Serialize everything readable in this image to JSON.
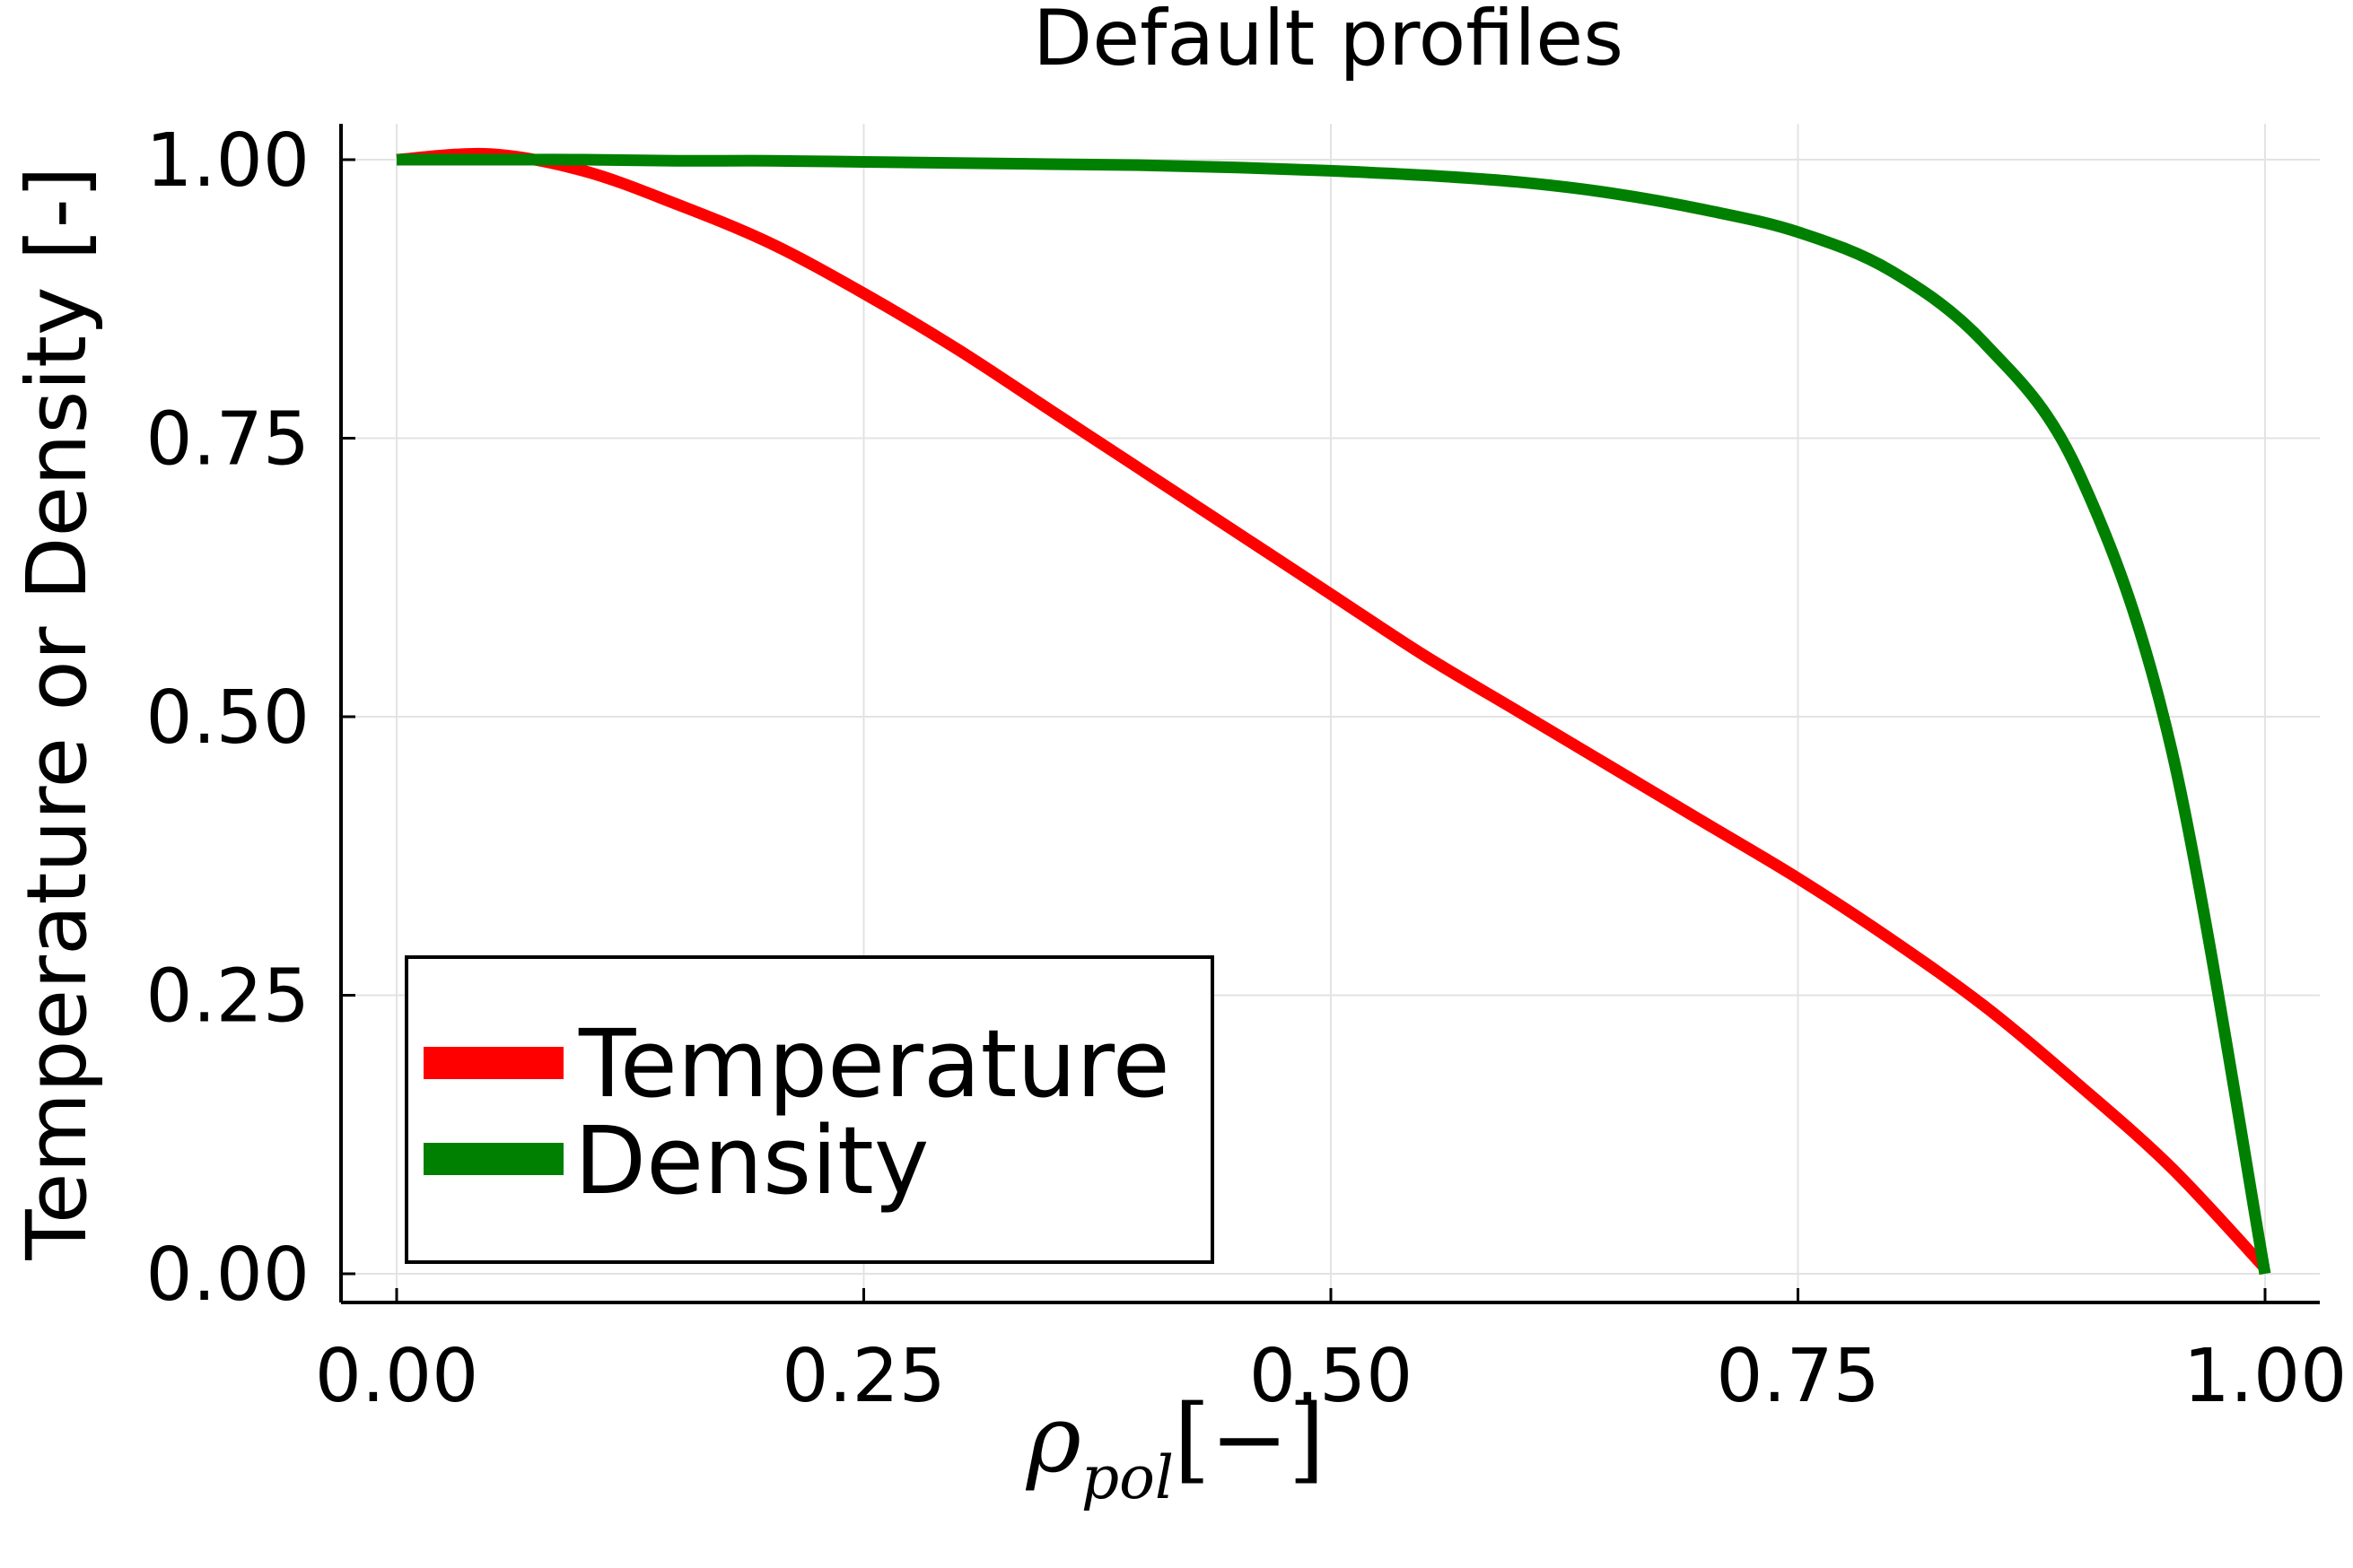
{
  "chart_data": {
    "type": "line",
    "title": "Default profiles",
    "xlabel": {
      "symbol": "ρ",
      "subscript": "pol",
      "unit": "[−]"
    },
    "ylabel": "Temperature or Density [-]",
    "xlim": [
      0,
      1
    ],
    "ylim": [
      0,
      1
    ],
    "xticks": [
      "0.00",
      "0.25",
      "0.50",
      "0.75",
      "1.00"
    ],
    "yticks": [
      "0.00",
      "0.25",
      "0.50",
      "0.75",
      "1.00"
    ],
    "grid": true,
    "legend": "bottom-left",
    "x": [
      0.0,
      0.05,
      0.1,
      0.15,
      0.2,
      0.25,
      0.3,
      0.35,
      0.4,
      0.45,
      0.5,
      0.55,
      0.6,
      0.65,
      0.7,
      0.75,
      0.8,
      0.85,
      0.9,
      0.95,
      1.0
    ],
    "series": [
      {
        "name": "Temperature",
        "color": "#ff0000",
        "values": [
          1.0,
          1.005,
          0.99,
          0.96,
          0.925,
          0.88,
          0.83,
          0.775,
          0.72,
          0.665,
          0.61,
          0.555,
          0.505,
          0.455,
          0.405,
          0.355,
          0.3,
          0.24,
          0.17,
          0.095,
          0.005
        ]
      },
      {
        "name": "Density",
        "color": "#008000",
        "values": [
          1.0,
          1.0,
          1.0,
          0.999,
          0.999,
          0.998,
          0.997,
          0.996,
          0.995,
          0.993,
          0.99,
          0.986,
          0.98,
          0.97,
          0.955,
          0.935,
          0.9,
          0.835,
          0.72,
          0.47,
          0.0
        ]
      }
    ]
  }
}
